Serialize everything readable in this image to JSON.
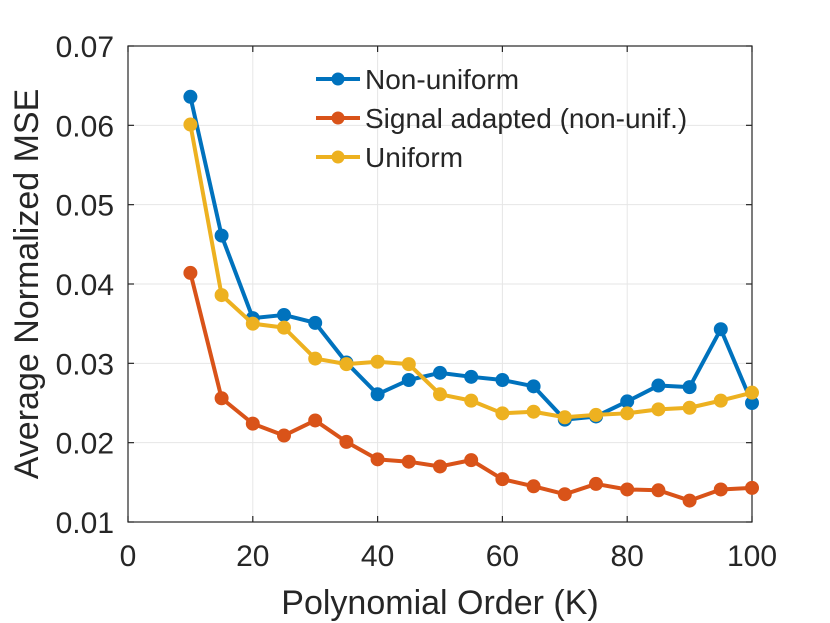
{
  "chart_data": {
    "type": "line",
    "title": "",
    "xlabel": "Polynomial Order (K)",
    "ylabel": "Average Normalized MSE",
    "xlim": [
      0,
      100
    ],
    "ylim": [
      0.01,
      0.07
    ],
    "xticks": [
      0,
      20,
      40,
      60,
      80,
      100
    ],
    "xtick_labels": [
      "0",
      "20",
      "40",
      "60",
      "80",
      "100"
    ],
    "yticks": [
      0.01,
      0.02,
      0.03,
      0.04,
      0.05,
      0.06,
      0.07
    ],
    "ytick_labels": [
      "0.01",
      "0.02",
      "0.03",
      "0.04",
      "0.05",
      "0.06",
      "0.07"
    ],
    "grid": true,
    "legend_position": "top-right",
    "x": [
      10,
      15,
      20,
      25,
      30,
      35,
      40,
      45,
      50,
      55,
      60,
      65,
      70,
      75,
      80,
      85,
      90,
      95,
      100
    ],
    "series": [
      {
        "name": "Non-uniform",
        "color": "#0072BD",
        "values": [
          0.0636,
          0.0461,
          0.0357,
          0.0361,
          0.0351,
          0.0301,
          0.0261,
          0.0279,
          0.0288,
          0.0283,
          0.0279,
          0.0271,
          0.0229,
          0.0233,
          0.0252,
          0.0272,
          0.027,
          0.0343,
          0.025
        ]
      },
      {
        "name": "Signal adapted (non-unif.)",
        "color": "#D95319",
        "values": [
          0.0414,
          0.0256,
          0.0224,
          0.0209,
          0.0228,
          0.0201,
          0.0179,
          0.0176,
          0.017,
          0.0178,
          0.0154,
          0.0145,
          0.0135,
          0.0148,
          0.0141,
          0.014,
          0.0127,
          0.0141,
          0.0143
        ]
      },
      {
        "name": "Uniform",
        "color": "#EDB120",
        "values": [
          0.0601,
          0.0386,
          0.035,
          0.0345,
          0.0306,
          0.0299,
          0.0302,
          0.0299,
          0.0261,
          0.0253,
          0.0237,
          0.0239,
          0.0232,
          0.0235,
          0.0237,
          0.0242,
          0.0244,
          0.0253,
          0.0263
        ]
      }
    ]
  }
}
